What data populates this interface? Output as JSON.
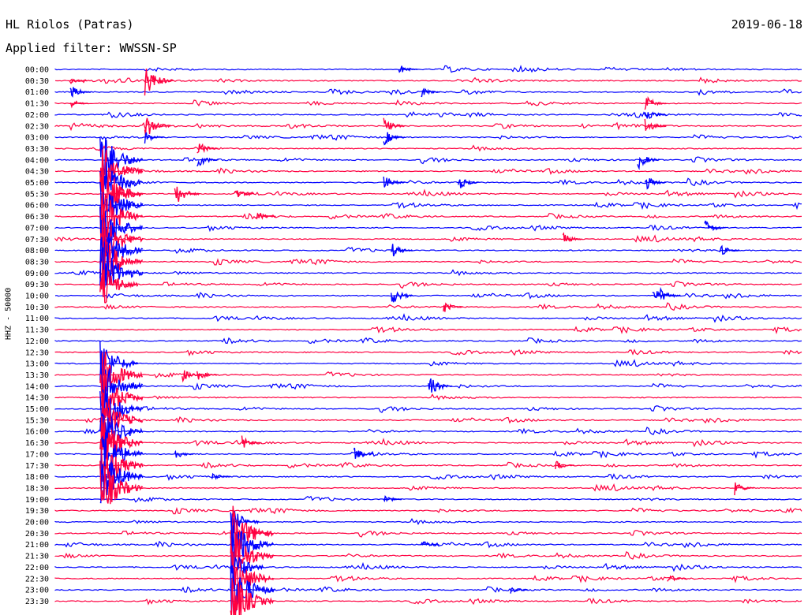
{
  "header": {
    "station": "HL Riolos (Patras)",
    "filter": "Applied filter: WWSSN-SP",
    "date": "2019-06-18"
  },
  "colors": {
    "red": "#ff0040",
    "blue": "#0000ff",
    "axis": "#000000"
  },
  "chart_data": {
    "type": "line",
    "title": "HL Riolos (Patras)",
    "subtitle": "Applied filter: WWSSN-SP",
    "ylabel": "HHZ - 50000",
    "xlabel": "",
    "row_interval_minutes": 30,
    "row_labels": [
      "00:00",
      "00:30",
      "01:00",
      "01:30",
      "02:00",
      "02:30",
      "03:00",
      "03:30",
      "04:00",
      "04:30",
      "05:00",
      "05:30",
      "06:00",
      "06:30",
      "07:00",
      "07:30",
      "08:00",
      "08:30",
      "09:00",
      "09:30",
      "10:00",
      "10:30",
      "11:00",
      "11:30",
      "12:00",
      "12:30",
      "13:00",
      "13:30",
      "14:00",
      "14:30",
      "15:00",
      "15:30",
      "16:00",
      "16:30",
      "17:00",
      "17:30",
      "18:00",
      "18:30",
      "19:00",
      "19:30",
      "20:00",
      "20:30",
      "21:00",
      "21:30",
      "22:00",
      "22:30",
      "23:00",
      "23:30"
    ],
    "series_colors": [
      "#0000ff",
      "#ff0040"
    ],
    "events": [
      {
        "row": 1,
        "pos": 0.02,
        "amp": 0.6
      },
      {
        "row": 2,
        "pos": 0.02,
        "amp": 1.4
      },
      {
        "row": 3,
        "pos": 0.02,
        "amp": 0.9
      },
      {
        "row": 1,
        "pos": 0.12,
        "amp": 3.0
      },
      {
        "row": 5,
        "pos": 0.12,
        "amp": 2.5
      },
      {
        "row": 6,
        "pos": 0.12,
        "amp": 1.2
      },
      {
        "row": 8,
        "pos": 0.06,
        "amp": 6.0
      },
      {
        "row": 9,
        "pos": 0.06,
        "amp": 6.0
      },
      {
        "row": 10,
        "pos": 0.06,
        "amp": 6.0
      },
      {
        "row": 11,
        "pos": 0.06,
        "amp": 6.0
      },
      {
        "row": 12,
        "pos": 0.06,
        "amp": 6.0
      },
      {
        "row": 13,
        "pos": 0.06,
        "amp": 6.0
      },
      {
        "row": 14,
        "pos": 0.06,
        "amp": 6.0
      },
      {
        "row": 15,
        "pos": 0.06,
        "amp": 6.0
      },
      {
        "row": 16,
        "pos": 0.06,
        "amp": 6.0
      },
      {
        "row": 17,
        "pos": 0.06,
        "amp": 6.0
      },
      {
        "row": 18,
        "pos": 0.06,
        "amp": 6.0
      },
      {
        "row": 19,
        "pos": 0.06,
        "amp": 5.0
      },
      {
        "row": 11,
        "pos": 0.08,
        "amp": 2.5
      },
      {
        "row": 7,
        "pos": 0.19,
        "amp": 1.5
      },
      {
        "row": 8,
        "pos": 0.19,
        "amp": 1.5
      },
      {
        "row": 11,
        "pos": 0.16,
        "amp": 2.2
      },
      {
        "row": 11,
        "pos": 0.24,
        "amp": 1.2
      },
      {
        "row": 26,
        "pos": 0.06,
        "amp": 5.0
      },
      {
        "row": 27,
        "pos": 0.06,
        "amp": 6.0
      },
      {
        "row": 28,
        "pos": 0.06,
        "amp": 6.0
      },
      {
        "row": 29,
        "pos": 0.06,
        "amp": 6.0
      },
      {
        "row": 30,
        "pos": 0.06,
        "amp": 6.0
      },
      {
        "row": 31,
        "pos": 0.06,
        "amp": 6.0
      },
      {
        "row": 32,
        "pos": 0.06,
        "amp": 6.0
      },
      {
        "row": 33,
        "pos": 0.06,
        "amp": 6.0
      },
      {
        "row": 34,
        "pos": 0.06,
        "amp": 6.0
      },
      {
        "row": 35,
        "pos": 0.06,
        "amp": 6.0
      },
      {
        "row": 36,
        "pos": 0.06,
        "amp": 6.0
      },
      {
        "row": 37,
        "pos": 0.06,
        "amp": 6.0
      },
      {
        "row": 27,
        "pos": 0.17,
        "amp": 1.3
      },
      {
        "row": 40,
        "pos": 0.235,
        "amp": 3.0
      },
      {
        "row": 41,
        "pos": 0.235,
        "amp": 6.0
      },
      {
        "row": 42,
        "pos": 0.235,
        "amp": 6.0
      },
      {
        "row": 43,
        "pos": 0.235,
        "amp": 6.0
      },
      {
        "row": 44,
        "pos": 0.235,
        "amp": 4.0
      },
      {
        "row": 45,
        "pos": 0.235,
        "amp": 6.0
      },
      {
        "row": 46,
        "pos": 0.235,
        "amp": 6.0
      },
      {
        "row": 47,
        "pos": 0.235,
        "amp": 6.0
      },
      {
        "row": 5,
        "pos": 0.44,
        "amp": 1.5
      },
      {
        "row": 6,
        "pos": 0.44,
        "amp": 1.6
      },
      {
        "row": 10,
        "pos": 0.44,
        "amp": 1.5
      },
      {
        "row": 0,
        "pos": 0.46,
        "amp": 1.0
      },
      {
        "row": 2,
        "pos": 0.49,
        "amp": 1.0
      },
      {
        "row": 10,
        "pos": 0.54,
        "amp": 1.4
      },
      {
        "row": 8,
        "pos": 0.78,
        "amp": 1.8
      },
      {
        "row": 16,
        "pos": 0.45,
        "amp": 1.5
      },
      {
        "row": 20,
        "pos": 0.45,
        "amp": 1.8
      },
      {
        "row": 28,
        "pos": 0.5,
        "amp": 2.0
      },
      {
        "row": 21,
        "pos": 0.52,
        "amp": 1.2
      },
      {
        "row": 33,
        "pos": 0.25,
        "amp": 1.3
      },
      {
        "row": 34,
        "pos": 0.16,
        "amp": 1.0
      },
      {
        "row": 34,
        "pos": 0.4,
        "amp": 1.3
      },
      {
        "row": 35,
        "pos": 0.67,
        "amp": 1.0
      },
      {
        "row": 4,
        "pos": 0.79,
        "amp": 1.5
      },
      {
        "row": 5,
        "pos": 0.79,
        "amp": 1.5
      },
      {
        "row": 3,
        "pos": 0.79,
        "amp": 1.5
      },
      {
        "row": 10,
        "pos": 0.79,
        "amp": 1.5
      },
      {
        "row": 14,
        "pos": 0.87,
        "amp": 1.6
      },
      {
        "row": 20,
        "pos": 0.8,
        "amp": 1.5
      },
      {
        "row": 20,
        "pos": 0.81,
        "amp": 1.4
      },
      {
        "row": 37,
        "pos": 0.91,
        "amp": 1.3
      },
      {
        "row": 42,
        "pos": 0.49,
        "amp": 0.9
      },
      {
        "row": 45,
        "pos": 0.82,
        "amp": 1.0
      },
      {
        "row": 46,
        "pos": 0.61,
        "amp": 0.8
      },
      {
        "row": 16,
        "pos": 0.89,
        "amp": 1.2
      },
      {
        "row": 15,
        "pos": 0.68,
        "amp": 1.2
      },
      {
        "row": 13,
        "pos": 0.27,
        "amp": 1.0
      },
      {
        "row": 27,
        "pos": 0.19,
        "amp": 1.2
      },
      {
        "row": 38,
        "pos": 0.44,
        "amp": 0.9
      },
      {
        "row": 36,
        "pos": 0.21,
        "amp": 0.9
      }
    ]
  }
}
